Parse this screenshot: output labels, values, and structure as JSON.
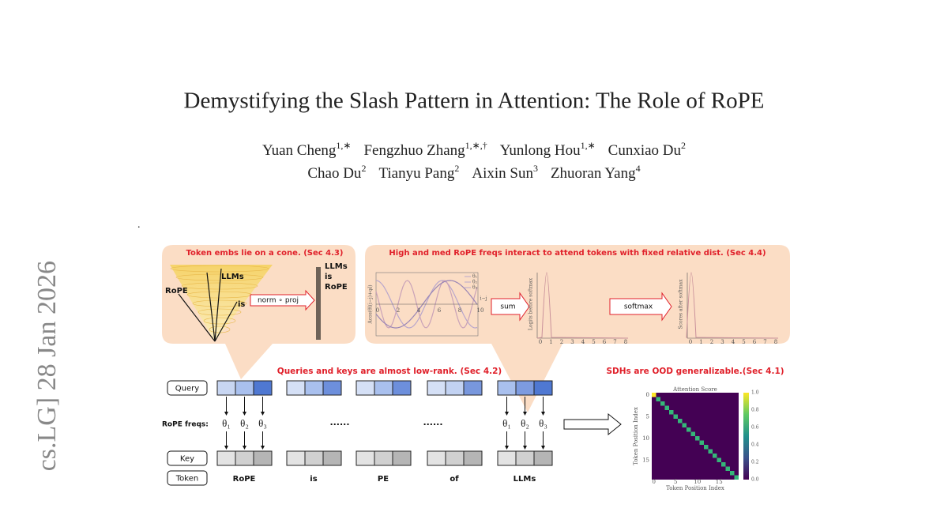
{
  "header": {
    "title": "Demystifying the Slash Pattern in Attention: The Role of RoPE",
    "authors": [
      [
        {
          "name": "Yuan Cheng",
          "affil": "1,∗"
        },
        {
          "name": "Fengzhuo Zhang",
          "affil": "1,∗,†"
        },
        {
          "name": "Yunlong Hou",
          "affil": "1,∗"
        },
        {
          "name": "Cunxiao Du",
          "affil": "2"
        }
      ],
      [
        {
          "name": "Chao Du",
          "affil": "2"
        },
        {
          "name": "Tianyu Pang",
          "affil": "2"
        },
        {
          "name": "Aixin Sun",
          "affil": "3"
        },
        {
          "name": "Zhuoran Yang",
          "affil": "4"
        }
      ]
    ],
    "arxiv_stamp": "cs.LG]  28 Jan 2026",
    "dot": "."
  },
  "figure": {
    "cone_panel": {
      "title": "Token embs lie on a cone. (Sec 4.3)",
      "llms": "LLMs",
      "rope": "RoPE",
      "is": "is",
      "operator": "norm ∘ proj",
      "output": [
        "LLMs",
        "is",
        "RoPE"
      ]
    },
    "freq_panel": {
      "title": "High and med RoPE freqs interact to attend tokens with fixed relative dist. (Sec 4.4)",
      "plot1": {
        "ylabel": "Acos(θl(i−j)+φl)",
        "legend": [
          "θ₁",
          "θ₂",
          "θ₃"
        ],
        "xticks": [
          0,
          2,
          4,
          6,
          8,
          10
        ],
        "xlabel": "i−j"
      },
      "operator1": "sum",
      "plot2": {
        "ylabel": "Logits before softmax",
        "xticks": [
          0,
          1,
          2,
          3,
          4,
          5,
          6,
          7,
          8
        ]
      },
      "operator2": "softmax",
      "plot3": {
        "ylabel": "Scores after softmax",
        "xticks": [
          0,
          1,
          2,
          3,
          4,
          5,
          6,
          7,
          8
        ]
      }
    },
    "lowrank_caption": "Queries and keys are almost low-rank. (Sec 4.2)",
    "ood_caption": "SDHs are OOD generalizable.(Sec 4.1)",
    "row_labels": {
      "query": "Query",
      "freqs": "RoPE freqs:",
      "key": "Key",
      "token": "Token"
    },
    "thetas": [
      "θ₁",
      "θ₂",
      "θ₃"
    ],
    "ellipses": [
      "......",
      "......"
    ],
    "tokens": [
      "RoPE",
      "is",
      "PE",
      "of",
      "LLMs"
    ],
    "heatmap": {
      "title": "Attention Score",
      "xlabel": "Token Position Index",
      "ylabel": "Token Position Index",
      "xticks": [
        0,
        5,
        10,
        15
      ],
      "yticks": [
        0,
        5,
        10,
        15
      ],
      "colorbar_ticks": [
        1.0,
        0.8,
        0.6,
        0.4,
        0.2,
        0.0
      ]
    }
  }
}
